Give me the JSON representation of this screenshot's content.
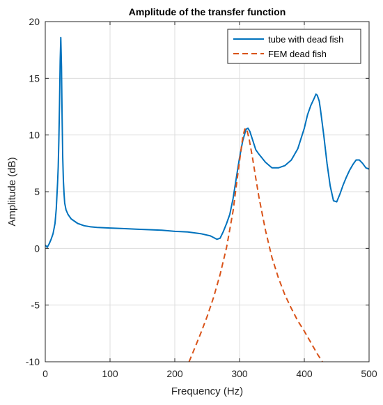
{
  "chart_data": {
    "type": "line",
    "title": "Amplitude of the transfer function",
    "xlabel": "Frequency (Hz)",
    "ylabel": "Amplitude (dB)",
    "xlim": [
      0,
      500
    ],
    "ylim": [
      -10,
      20
    ],
    "xticks": [
      0,
      100,
      200,
      300,
      400,
      500
    ],
    "yticks": [
      -10,
      -5,
      0,
      5,
      10,
      15,
      20
    ],
    "xtick_labels": [
      "0",
      "100",
      "200",
      "300",
      "400",
      "500"
    ],
    "ytick_labels": [
      "-10",
      "-5",
      "0",
      "5",
      "10",
      "15",
      "20"
    ],
    "grid": true,
    "legend_position": "top-right",
    "series": [
      {
        "name": "tube with dead fish",
        "color": "#0072BD",
        "style": "solid",
        "x": [
          0,
          3,
          6,
          9,
          12,
          15,
          17,
          19,
          20,
          21,
          22,
          23,
          24,
          25,
          26,
          27,
          28,
          29,
          30,
          32,
          35,
          40,
          50,
          60,
          70,
          80,
          100,
          120,
          140,
          160,
          180,
          200,
          220,
          240,
          255,
          265,
          270,
          275,
          280,
          285,
          290,
          295,
          300,
          305,
          310,
          313,
          316,
          320,
          325,
          330,
          340,
          350,
          360,
          370,
          380,
          390,
          400,
          405,
          410,
          415,
          418,
          420,
          423,
          425,
          430,
          435,
          440,
          445,
          450,
          455,
          460,
          465,
          470,
          475,
          480,
          485,
          490,
          495,
          500
        ],
        "y": [
          0.3,
          0.1,
          0.4,
          0.8,
          1.3,
          2.2,
          3.5,
          5.8,
          7.2,
          9.5,
          12.8,
          16.5,
          18.6,
          16.0,
          11.5,
          8.0,
          6.0,
          4.8,
          4.0,
          3.4,
          3.0,
          2.6,
          2.2,
          2.0,
          1.9,
          1.85,
          1.8,
          1.75,
          1.7,
          1.65,
          1.6,
          1.5,
          1.45,
          1.3,
          1.1,
          0.8,
          0.9,
          1.5,
          2.2,
          3.0,
          4.4,
          6.2,
          8.0,
          9.5,
          10.5,
          10.6,
          10.3,
          9.6,
          8.7,
          8.3,
          7.6,
          7.1,
          7.1,
          7.3,
          7.8,
          8.8,
          10.6,
          11.8,
          12.6,
          13.2,
          13.6,
          13.5,
          13.0,
          12.2,
          10.0,
          7.5,
          5.5,
          4.2,
          4.1,
          4.8,
          5.6,
          6.3,
          6.9,
          7.4,
          7.8,
          7.8,
          7.5,
          7.1,
          7.0
        ]
      },
      {
        "name": "FEM dead fish",
        "color": "#D95319",
        "style": "dashed",
        "x": [
          222,
          230,
          240,
          250,
          260,
          270,
          280,
          290,
          295,
          300,
          305,
          308,
          310,
          312,
          315,
          320,
          325,
          330,
          340,
          350,
          360,
          370,
          380,
          390,
          400,
          410,
          420,
          428
        ],
        "y": [
          -10,
          -8.9,
          -7.5,
          -6.0,
          -4.3,
          -2.3,
          0.1,
          3.3,
          5.5,
          7.7,
          9.8,
          10.5,
          10.6,
          10.3,
          9.6,
          8.0,
          6.2,
          4.5,
          1.6,
          -0.8,
          -2.6,
          -4.1,
          -5.3,
          -6.4,
          -7.3,
          -8.3,
          -9.3,
          -10.0
        ]
      }
    ]
  }
}
